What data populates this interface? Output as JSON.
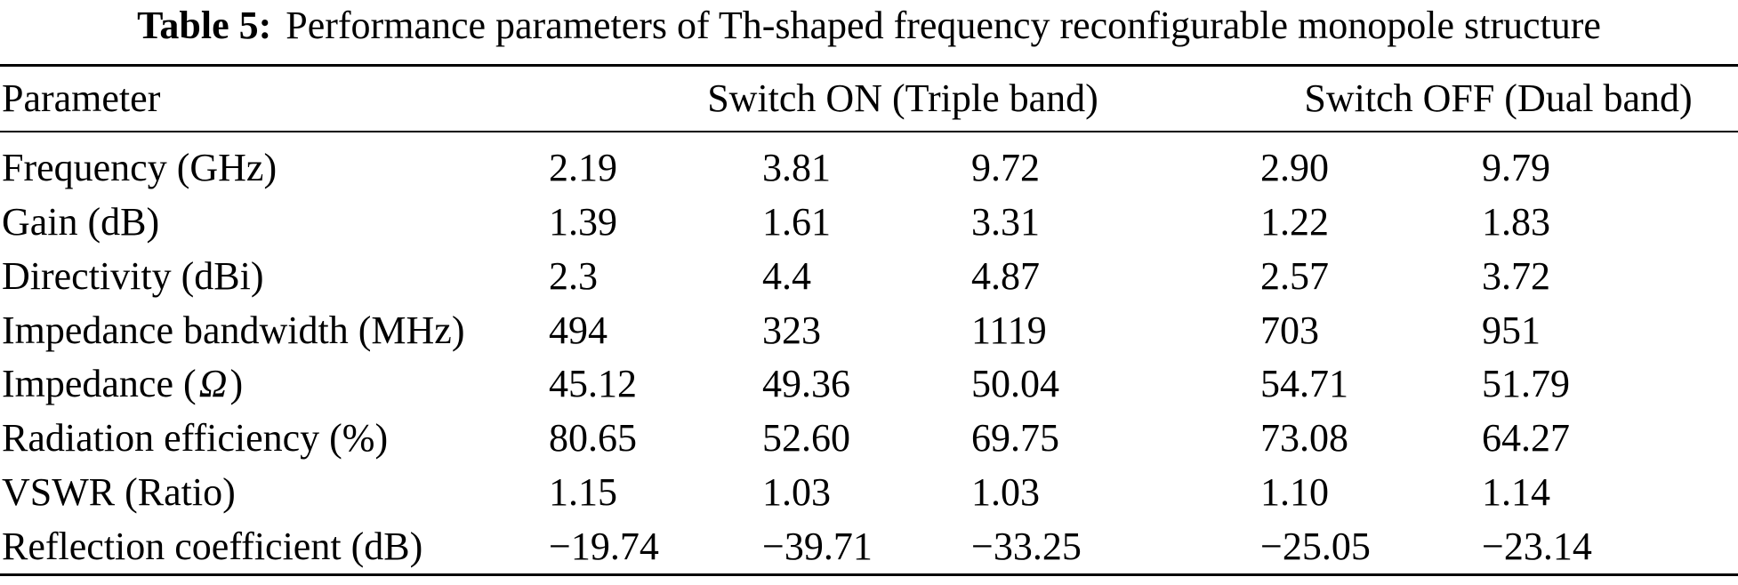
{
  "page": {
    "background_color": "#ffffff",
    "text_color": "#000000"
  },
  "caption": {
    "label": "Table 5:",
    "text": "Performance parameters of Th-shaped frequency reconfigurable monopole structure"
  },
  "table": {
    "header": {
      "parameter": "Parameter",
      "switch_on": "Switch ON (Triple band)",
      "switch_off": "Switch OFF (Dual band)"
    },
    "rows": [
      {
        "param": "Frequency (GHz)",
        "values": [
          "2.19",
          "3.81",
          "9.72",
          "2.90",
          "9.79"
        ]
      },
      {
        "param": "Gain (dB)",
        "values": [
          "1.39",
          "1.61",
          "3.31",
          "1.22",
          "1.83"
        ]
      },
      {
        "param": "Directivity (dBi)",
        "values": [
          "2.3",
          "4.4",
          "4.87",
          "2.57",
          "3.72"
        ]
      },
      {
        "param": "Impedance bandwidth (MHz)",
        "values": [
          "494",
          "323",
          "1119",
          "703",
          "951"
        ]
      },
      {
        "param_prefix": "Impedance (",
        "param_omega": "Ω",
        "param_suffix": ")",
        "values": [
          "45.12",
          "49.36",
          "50.04",
          "54.71",
          "51.79"
        ]
      },
      {
        "param": "Radiation efficiency (%)",
        "values": [
          "80.65",
          "52.60",
          "69.75",
          "73.08",
          "64.27"
        ]
      },
      {
        "param": "VSWR (Ratio)",
        "values": [
          "1.15",
          "1.03",
          "1.03",
          "1.10",
          "1.14"
        ]
      },
      {
        "param": "Reflection coefficient (dB)",
        "values": [
          "−19.74",
          "−39.71",
          "−33.25",
          "−25.05",
          "−23.14"
        ]
      }
    ]
  }
}
